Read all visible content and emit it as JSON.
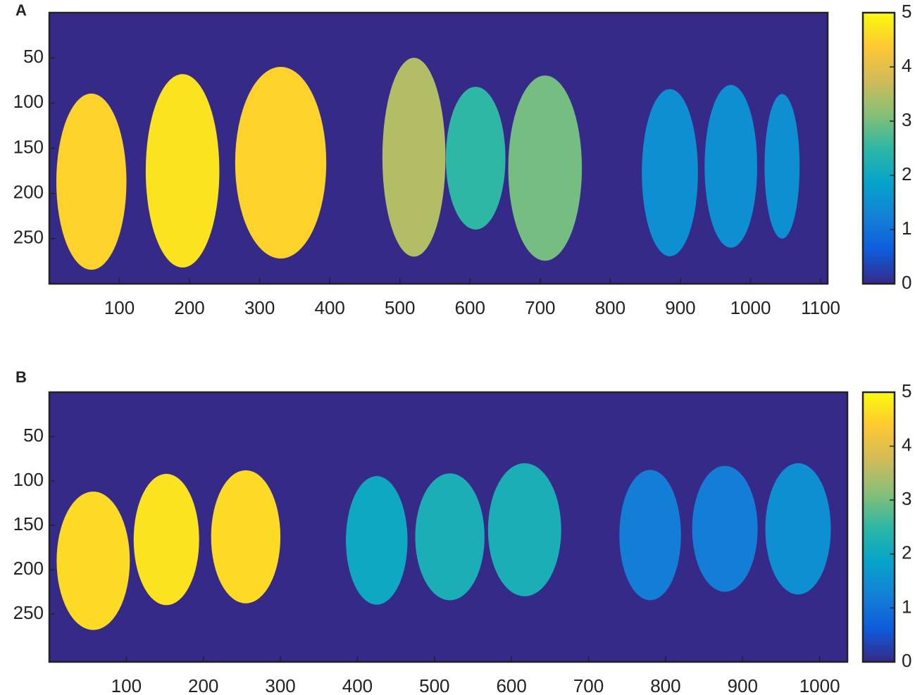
{
  "chart_data": [
    {
      "type": "heatmap",
      "panel_label": "A",
      "xlim": [
        0,
        1110
      ],
      "ylim": [
        0,
        300
      ],
      "y_reversed": true,
      "xticks": [
        100,
        200,
        300,
        400,
        500,
        600,
        700,
        800,
        900,
        1000,
        1100
      ],
      "yticks": [
        50,
        100,
        150,
        200,
        250
      ],
      "clim": [
        0,
        5
      ],
      "cticks": [
        0,
        1,
        2,
        3,
        4,
        5
      ],
      "colormap": [
        "#352a87",
        "#0f5cdd",
        "#1481d6",
        "#06a4ca",
        "#2eb7a4",
        "#87bf77",
        "#d1bb59",
        "#fec832",
        "#f9fb0e"
      ],
      "background_value": 0,
      "regions": {
        "x": [
          60,
          190,
          330,
          520,
          608,
          707,
          885,
          972,
          1045
        ],
        "y": [
          187,
          175,
          166,
          160,
          161,
          172,
          177,
          170,
          170
        ],
        "width": [
          100,
          105,
          130,
          90,
          85,
          105,
          80,
          75,
          50
        ],
        "height": [
          195,
          214,
          212,
          220,
          158,
          205,
          185,
          180,
          160
        ],
        "values": [
          4.5,
          4.7,
          4.5,
          3.5,
          2.5,
          3,
          1.5,
          1.5,
          1.5
        ]
      }
    },
    {
      "type": "heatmap",
      "panel_label": "B",
      "xlim": [
        0,
        1036
      ],
      "ylim": [
        0,
        304
      ],
      "y_reversed": true,
      "xticks": [
        100,
        200,
        300,
        400,
        500,
        600,
        700,
        800,
        900,
        1000
      ],
      "yticks": [
        50,
        100,
        150,
        200,
        250
      ],
      "clim": [
        0,
        5
      ],
      "cticks": [
        0,
        1,
        2,
        3,
        4,
        5
      ],
      "colormap": [
        "#352a87",
        "#0f5cdd",
        "#1481d6",
        "#06a4ca",
        "#2eb7a4",
        "#87bf77",
        "#d1bb59",
        "#fec832",
        "#f9fb0e"
      ],
      "background_value": 0,
      "regions": {
        "x": [
          57,
          152,
          255,
          425,
          520,
          617,
          780,
          877,
          972
        ],
        "y": [
          190,
          166,
          163,
          167,
          163,
          155,
          161,
          154,
          154
        ],
        "width": [
          95,
          85,
          90,
          80,
          90,
          95,
          80,
          85,
          85
        ],
        "height": [
          156,
          148,
          150,
          145,
          143,
          150,
          147,
          142,
          148
        ],
        "values": [
          4.6,
          4.7,
          4.6,
          2,
          2.2,
          2.2,
          1.2,
          1.2,
          1.5
        ]
      }
    }
  ]
}
